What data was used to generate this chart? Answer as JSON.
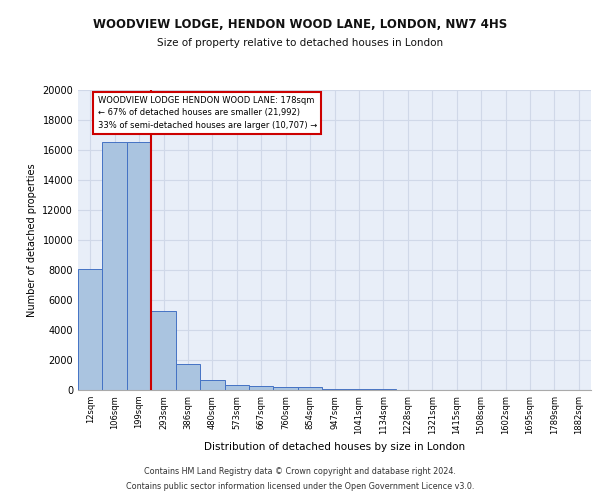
{
  "title1": "WOODVIEW LODGE, HENDON WOOD LANE, LONDON, NW7 4HS",
  "title2": "Size of property relative to detached houses in London",
  "xlabel": "Distribution of detached houses by size in London",
  "ylabel": "Number of detached properties",
  "bar_labels": [
    "12sqm",
    "106sqm",
    "199sqm",
    "293sqm",
    "386sqm",
    "480sqm",
    "573sqm",
    "667sqm",
    "760sqm",
    "854sqm",
    "947sqm",
    "1041sqm",
    "1134sqm",
    "1228sqm",
    "1321sqm",
    "1415sqm",
    "1508sqm",
    "1602sqm",
    "1695sqm",
    "1789sqm",
    "1882sqm"
  ],
  "bar_values": [
    8100,
    16500,
    16500,
    5300,
    1750,
    700,
    350,
    280,
    200,
    200,
    100,
    60,
    40,
    30,
    20,
    15,
    10,
    8,
    5,
    3,
    2
  ],
  "bar_color": "#aac4e0",
  "bar_edge_color": "#4472c4",
  "grid_color": "#d0d8e8",
  "background_color": "#e8eef8",
  "vline_x": 2.5,
  "vline_color": "#cc0000",
  "annotation_text": "WOODVIEW LODGE HENDON WOOD LANE: 178sqm\n← 67% of detached houses are smaller (21,992)\n33% of semi-detached houses are larger (10,707) →",
  "annotation_box_color": "#ffffff",
  "annotation_box_edge": "#cc0000",
  "ylim": [
    0,
    20000
  ],
  "yticks": [
    0,
    2000,
    4000,
    6000,
    8000,
    10000,
    12000,
    14000,
    16000,
    18000,
    20000
  ],
  "footnote1": "Contains HM Land Registry data © Crown copyright and database right 2024.",
  "footnote2": "Contains public sector information licensed under the Open Government Licence v3.0."
}
